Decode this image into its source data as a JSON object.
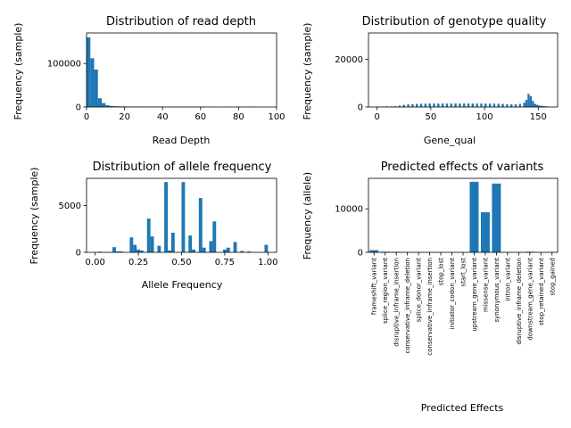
{
  "colors": {
    "bar": "#1f77b4",
    "axis": "#000000"
  },
  "chart_data": [
    {
      "type": "bar",
      "title": "Distribution of read depth",
      "xlabel": "Read Depth",
      "ylabel": "Frequency (sample)",
      "xlim": [
        0,
        100
      ],
      "ylim": [
        0,
        170000
      ],
      "xticks": [
        0,
        20,
        40,
        60,
        80,
        100
      ],
      "yticks": [
        0,
        100000
      ],
      "bin_width": 2,
      "bars": [
        {
          "x": 0,
          "y": 160000
        },
        {
          "x": 2,
          "y": 112000
        },
        {
          "x": 4,
          "y": 86000
        },
        {
          "x": 6,
          "y": 20000
        },
        {
          "x": 8,
          "y": 9000
        },
        {
          "x": 10,
          "y": 4000
        },
        {
          "x": 12,
          "y": 2500
        },
        {
          "x": 14,
          "y": 1800
        },
        {
          "x": 16,
          "y": 1500
        },
        {
          "x": 18,
          "y": 1300
        },
        {
          "x": 20,
          "y": 1200
        },
        {
          "x": 22,
          "y": 1100
        },
        {
          "x": 24,
          "y": 1000
        },
        {
          "x": 26,
          "y": 1000
        },
        {
          "x": 28,
          "y": 900
        },
        {
          "x": 30,
          "y": 900
        },
        {
          "x": 32,
          "y": 800
        },
        {
          "x": 34,
          "y": 800
        },
        {
          "x": 36,
          "y": 700
        },
        {
          "x": 38,
          "y": 700
        },
        {
          "x": 40,
          "y": 700
        },
        {
          "x": 42,
          "y": 600
        },
        {
          "x": 44,
          "y": 600
        },
        {
          "x": 46,
          "y": 600
        },
        {
          "x": 48,
          "y": 500
        },
        {
          "x": 50,
          "y": 500
        },
        {
          "x": 52,
          "y": 500
        },
        {
          "x": 54,
          "y": 500
        },
        {
          "x": 56,
          "y": 400
        },
        {
          "x": 58,
          "y": 400
        },
        {
          "x": 60,
          "y": 400
        },
        {
          "x": 62,
          "y": 400
        },
        {
          "x": 64,
          "y": 300
        },
        {
          "x": 72,
          "y": 400
        },
        {
          "x": 78,
          "y": 500
        },
        {
          "x": 80,
          "y": 500
        },
        {
          "x": 86,
          "y": 400
        }
      ]
    },
    {
      "type": "bar",
      "title": "Distribution of genotype quality",
      "xlabel": "Gene_qual",
      "ylabel": "Frequency (sample)",
      "xlim": [
        -8,
        168
      ],
      "ylim": [
        0,
        31000
      ],
      "xticks": [
        0,
        50,
        100,
        150
      ],
      "yticks": [
        0,
        20000
      ],
      "bin_width": 2,
      "bars": [
        {
          "x": 0,
          "y": 200
        },
        {
          "x": 4,
          "y": 150
        },
        {
          "x": 8,
          "y": 250
        },
        {
          "x": 12,
          "y": 250
        },
        {
          "x": 16,
          "y": 300
        },
        {
          "x": 20,
          "y": 600
        },
        {
          "x": 24,
          "y": 900
        },
        {
          "x": 28,
          "y": 1100
        },
        {
          "x": 32,
          "y": 1200
        },
        {
          "x": 36,
          "y": 1300
        },
        {
          "x": 40,
          "y": 1350
        },
        {
          "x": 44,
          "y": 1400
        },
        {
          "x": 48,
          "y": 1450
        },
        {
          "x": 52,
          "y": 1450
        },
        {
          "x": 56,
          "y": 1450
        },
        {
          "x": 60,
          "y": 1450
        },
        {
          "x": 64,
          "y": 1450
        },
        {
          "x": 68,
          "y": 1450
        },
        {
          "x": 72,
          "y": 1450
        },
        {
          "x": 76,
          "y": 1450
        },
        {
          "x": 80,
          "y": 1450
        },
        {
          "x": 84,
          "y": 1450
        },
        {
          "x": 88,
          "y": 1450
        },
        {
          "x": 92,
          "y": 1450
        },
        {
          "x": 96,
          "y": 1450
        },
        {
          "x": 100,
          "y": 1400
        },
        {
          "x": 104,
          "y": 1400
        },
        {
          "x": 108,
          "y": 1400
        },
        {
          "x": 112,
          "y": 1350
        },
        {
          "x": 116,
          "y": 1300
        },
        {
          "x": 120,
          "y": 1200
        },
        {
          "x": 124,
          "y": 1100
        },
        {
          "x": 128,
          "y": 1100
        },
        {
          "x": 132,
          "y": 1300
        },
        {
          "x": 136,
          "y": 1800
        },
        {
          "x": 138,
          "y": 3000
        },
        {
          "x": 140,
          "y": 5500
        },
        {
          "x": 142,
          "y": 4500
        },
        {
          "x": 144,
          "y": 2500
        },
        {
          "x": 146,
          "y": 1300
        },
        {
          "x": 148,
          "y": 900
        },
        {
          "x": 150,
          "y": 600
        },
        {
          "x": 152,
          "y": 500
        },
        {
          "x": 154,
          "y": 400
        },
        {
          "x": 156,
          "y": 300
        },
        {
          "x": 158,
          "y": 200
        }
      ]
    },
    {
      "type": "bar",
      "title": "Distribution of allele frequency",
      "xlabel": "Allele Frequency",
      "ylabel": "Frequency (sample)",
      "xlim": [
        -0.05,
        1.05
      ],
      "ylim": [
        0,
        7900
      ],
      "xticks": [
        0.0,
        0.25,
        0.5,
        0.75,
        1.0
      ],
      "xtick_labels": [
        "0.00",
        "0.25",
        "0.50",
        "0.75",
        "1.00"
      ],
      "yticks": [
        0,
        5000
      ],
      "bin_width": 0.02,
      "bars": [
        {
          "x": 0.02,
          "y": 80
        },
        {
          "x": 0.06,
          "y": 40
        },
        {
          "x": 0.1,
          "y": 550
        },
        {
          "x": 0.12,
          "y": 100
        },
        {
          "x": 0.14,
          "y": 100
        },
        {
          "x": 0.2,
          "y": 1600
        },
        {
          "x": 0.22,
          "y": 800
        },
        {
          "x": 0.24,
          "y": 300
        },
        {
          "x": 0.26,
          "y": 200
        },
        {
          "x": 0.3,
          "y": 3600
        },
        {
          "x": 0.32,
          "y": 1700
        },
        {
          "x": 0.36,
          "y": 700
        },
        {
          "x": 0.4,
          "y": 7500
        },
        {
          "x": 0.42,
          "y": 200
        },
        {
          "x": 0.44,
          "y": 2100
        },
        {
          "x": 0.5,
          "y": 7500
        },
        {
          "x": 0.54,
          "y": 1800
        },
        {
          "x": 0.56,
          "y": 300
        },
        {
          "x": 0.6,
          "y": 5800
        },
        {
          "x": 0.62,
          "y": 500
        },
        {
          "x": 0.66,
          "y": 1200
        },
        {
          "x": 0.68,
          "y": 3300
        },
        {
          "x": 0.74,
          "y": 300
        },
        {
          "x": 0.76,
          "y": 500
        },
        {
          "x": 0.8,
          "y": 1100
        },
        {
          "x": 0.84,
          "y": 150
        },
        {
          "x": 0.88,
          "y": 100
        },
        {
          "x": 0.98,
          "y": 800
        }
      ]
    },
    {
      "type": "bar",
      "title": "Predicted effects of variants",
      "xlabel": "Predicted Effects",
      "ylabel": "Frequency (allele)",
      "ylim": [
        0,
        17000
      ],
      "yticks": [
        0,
        10000
      ],
      "categories": [
        "frameshift_variant",
        "splice_region_variant",
        "disruptive_inframe_insertion",
        "conservative_inframe_deletion",
        "splice_donor_variant",
        "conservative_inframe_insertion",
        "stop_lost",
        "initiator_codon_variant",
        "start_lost",
        "upstream_gene_variant",
        "missense_variant",
        "synonymous_variant",
        "intron_variant",
        "disruptive_inframe_deletion",
        "downstream_gene_variant",
        "stop_retained_variant",
        "stop_gained"
      ],
      "values": [
        500,
        150,
        120,
        60,
        40,
        40,
        20,
        20,
        20,
        16200,
        9200,
        15800,
        60,
        30,
        150,
        30,
        100
      ]
    }
  ]
}
